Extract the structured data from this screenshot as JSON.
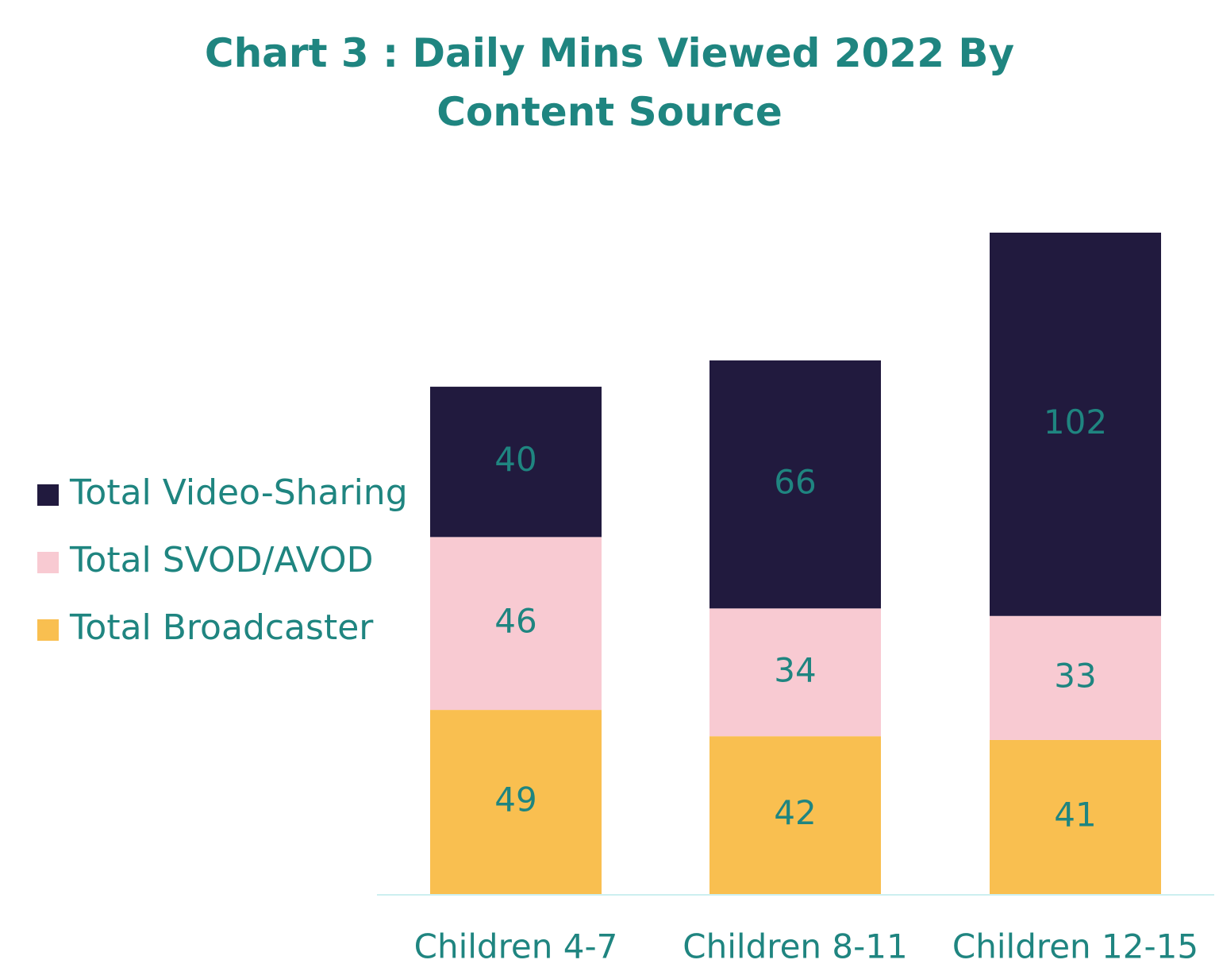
{
  "chart_data": {
    "type": "stacked-bar",
    "title": "Chart 3 : Daily Mins Viewed 2022 By Content Source",
    "categories": [
      "Children 4-7",
      "Children 8-11",
      "Children 12-15"
    ],
    "series": [
      {
        "name": "Total Broadcaster",
        "color": "#f9bf50",
        "values": [
          49,
          42,
          41
        ]
      },
      {
        "name": "Total SVOD/AVOD",
        "color": "#f8cad2",
        "values": [
          46,
          34,
          33
        ]
      },
      {
        "name": "Total Video-Sharing",
        "color": "#211a3e",
        "values": [
          40,
          66,
          102
        ]
      }
    ]
  }
}
